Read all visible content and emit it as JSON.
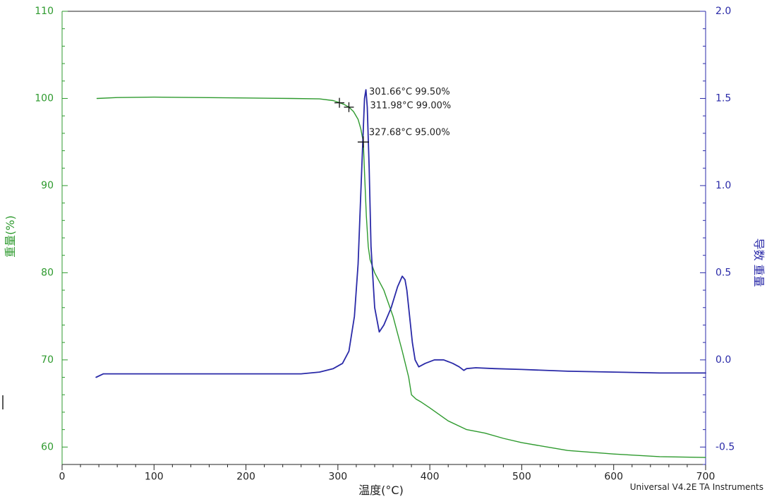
{
  "chart_data": {
    "type": "line",
    "footer": "Universal V4.2E TA Instruments",
    "xlabel": "温度(°C)",
    "ylabel_left": "重量(%)",
    "ylabel_right": "导数 重量",
    "xlim": [
      0,
      700
    ],
    "ylim_left": [
      58,
      110
    ],
    "ylim_right": [
      -0.6,
      2.0
    ],
    "x_ticks": [
      "0",
      "100",
      "200",
      "300",
      "400",
      "500",
      "600",
      "700"
    ],
    "y_left_ticks": [
      "110",
      "100",
      "90",
      "80",
      "70",
      "60"
    ],
    "y_right_ticks": [
      "2.0",
      "1.5",
      "1.0",
      "0.5",
      "0.0",
      "-0.5"
    ],
    "colors": {
      "weight": "#2e9a2e",
      "derivative": "#2a2aa8",
      "frame": "#222222"
    },
    "grid": false,
    "series": [
      {
        "axis": "left",
        "color": "#2e9a2e",
        "x": [
          38,
          60,
          100,
          150,
          200,
          250,
          280,
          295,
          302,
          307,
          312,
          317,
          322,
          325,
          327.7,
          329,
          331,
          333,
          335,
          340,
          350,
          360,
          370,
          377,
          380,
          385,
          390,
          400,
          420,
          440,
          460,
          480,
          500,
          550,
          600,
          650,
          700
        ],
        "values": [
          100.0,
          100.1,
          100.15,
          100.1,
          100.05,
          100.0,
          99.95,
          99.75,
          99.5,
          99.3,
          99.0,
          98.5,
          97.6,
          96.5,
          95.0,
          91.5,
          86.5,
          83.0,
          81.5,
          80.0,
          78.0,
          75.0,
          71.0,
          68.0,
          66.0,
          65.5,
          65.2,
          64.5,
          63.0,
          62.0,
          61.6,
          61.0,
          60.5,
          59.6,
          59.2,
          58.9,
          58.8
        ]
      },
      {
        "axis": "right",
        "color": "#2a2aa8",
        "x": [
          37,
          45,
          100,
          200,
          260,
          280,
          295,
          305,
          312,
          318,
          322,
          326,
          329,
          330.5,
          332,
          334,
          336,
          340,
          345,
          350,
          358,
          365,
          370,
          373,
          375,
          378,
          381,
          384,
          388,
          395,
          405,
          415,
          425,
          432,
          437,
          440,
          450,
          470,
          500,
          550,
          600,
          650,
          700
        ],
        "values": [
          -0.1,
          -0.08,
          -0.08,
          -0.08,
          -0.08,
          -0.07,
          -0.05,
          -0.02,
          0.05,
          0.25,
          0.55,
          1.1,
          1.5,
          1.55,
          1.45,
          1.1,
          0.65,
          0.3,
          0.16,
          0.2,
          0.3,
          0.42,
          0.48,
          0.46,
          0.4,
          0.25,
          0.1,
          0.0,
          -0.04,
          -0.02,
          0.0,
          0.0,
          -0.02,
          -0.04,
          -0.06,
          -0.05,
          -0.045,
          -0.05,
          -0.055,
          -0.065,
          -0.07,
          -0.075,
          -0.075
        ]
      }
    ],
    "markers": [
      {
        "x": 301.66,
        "y": 99.5,
        "label": "301.66°C 99.50%"
      },
      {
        "x": 311.98,
        "y": 99.0,
        "label": "311.98°C 99.00%"
      },
      {
        "x": 327.68,
        "y": 95.0,
        "label": "327.68°C 95.00%"
      }
    ]
  }
}
